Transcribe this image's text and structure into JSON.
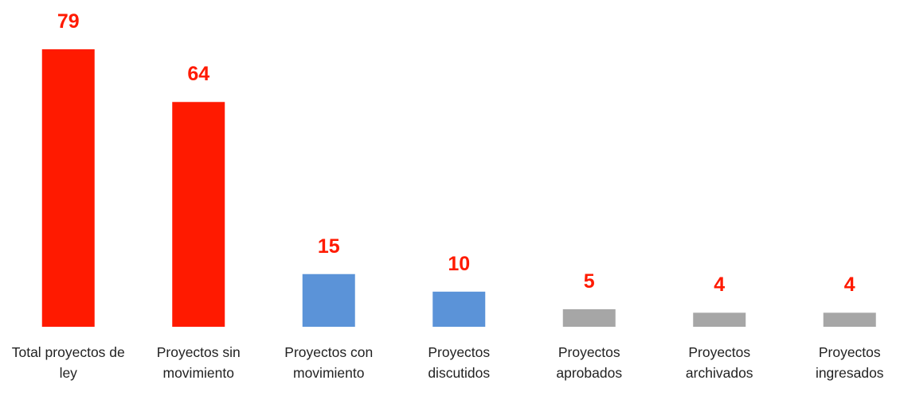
{
  "chart_data": {
    "type": "bar",
    "categories": [
      "Total proyectos de ley",
      "Proyectos sin movimiento",
      "Proyectos con movimiento",
      "Proyectos discutidos",
      "Proyectos aprobados",
      "Proyectos archivados",
      "Proyectos ingresados"
    ],
    "values": [
      79,
      64,
      15,
      10,
      5,
      4,
      4
    ],
    "colors": [
      "#ff1a00",
      "#ff1a00",
      "#5b93d8",
      "#5b93d8",
      "#a6a6a6",
      "#a6a6a6",
      "#a6a6a6"
    ],
    "label_color": "#ff1a00"
  }
}
